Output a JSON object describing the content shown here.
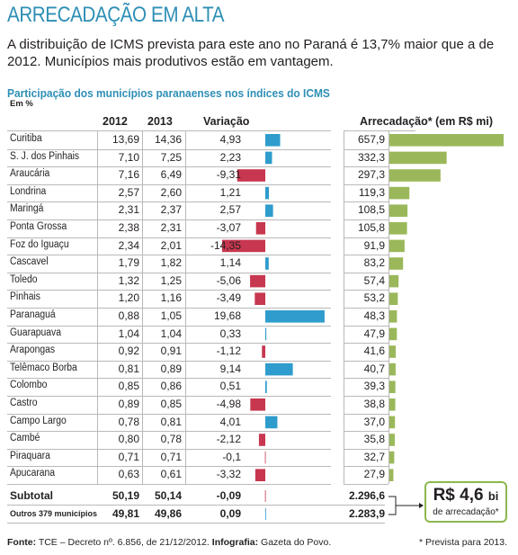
{
  "header": {
    "title": "ARRECADAÇÃO EM ALTA",
    "lead": "A distribuição de ICMS prevista para este ano no Paraná é 13,7% maior que a de 2012. Municípios mais produtivos estão em vantagem.",
    "subtitle": "Participação dos municípios paranaenses nos índices do ICMS",
    "unit": "Em %"
  },
  "columns": {
    "y2012": "2012",
    "y2013": "2013",
    "variation": "Variação",
    "revenue": "Arrecadação* (em R$ mi)"
  },
  "colors": {
    "positive": "#2e9ccc",
    "negative": "#c7374f",
    "revenue": "#9ab85a",
    "stripe": "#e9e9e9"
  },
  "chart_data": {
    "type": "table",
    "rows": [
      {
        "name": "Curitiba",
        "y2012": "13,69",
        "y2013": "14,36",
        "variation": 4.93,
        "variation_label": "4,93",
        "revenue": 657.9,
        "revenue_label": "657,9"
      },
      {
        "name": "S. J. dos Pinhais",
        "y2012": "7,10",
        "y2013": "7,25",
        "variation": 2.23,
        "variation_label": "2,23",
        "revenue": 332.3,
        "revenue_label": "332,3"
      },
      {
        "name": "Araucária",
        "y2012": "7,16",
        "y2013": "6,49",
        "variation": -9.31,
        "variation_label": "-9,31",
        "revenue": 297.3,
        "revenue_label": "297,3"
      },
      {
        "name": "Londrina",
        "y2012": "2,57",
        "y2013": "2,60",
        "variation": 1.21,
        "variation_label": "1,21",
        "revenue": 119.3,
        "revenue_label": "119,3"
      },
      {
        "name": "Maringá",
        "y2012": "2,31",
        "y2013": "2,37",
        "variation": 2.57,
        "variation_label": "2,57",
        "revenue": 108.5,
        "revenue_label": "108,5"
      },
      {
        "name": "Ponta Grossa",
        "y2012": "2,38",
        "y2013": "2,31",
        "variation": -3.07,
        "variation_label": "-3,07",
        "revenue": 105.8,
        "revenue_label": "105,8"
      },
      {
        "name": "Foz do Iguaçu",
        "y2012": "2,34",
        "y2013": "2,01",
        "variation": -14.35,
        "variation_label": "-14,35",
        "revenue": 91.9,
        "revenue_label": "91,9"
      },
      {
        "name": "Cascavel",
        "y2012": "1,79",
        "y2013": "1,82",
        "variation": 1.14,
        "variation_label": "1,14",
        "revenue": 83.2,
        "revenue_label": "83,2"
      },
      {
        "name": "Toledo",
        "y2012": "1,32",
        "y2013": "1,25",
        "variation": -5.06,
        "variation_label": "-5,06",
        "revenue": 57.4,
        "revenue_label": "57,4"
      },
      {
        "name": "Pinhais",
        "y2012": "1,20",
        "y2013": "1,16",
        "variation": -3.49,
        "variation_label": "-3,49",
        "revenue": 53.2,
        "revenue_label": "53,2"
      },
      {
        "name": "Paranaguá",
        "y2012": "0,88",
        "y2013": "1,05",
        "variation": 19.68,
        "variation_label": "19,68",
        "revenue": 48.3,
        "revenue_label": "48,3"
      },
      {
        "name": "Guarapuava",
        "y2012": "1,04",
        "y2013": "1,04",
        "variation": 0.33,
        "variation_label": "0,33",
        "revenue": 47.9,
        "revenue_label": "47,9"
      },
      {
        "name": "Arapongas",
        "y2012": "0,92",
        "y2013": "0,91",
        "variation": -1.12,
        "variation_label": "-1,12",
        "revenue": 41.6,
        "revenue_label": "41,6"
      },
      {
        "name": "Telêmaco Borba",
        "y2012": "0,81",
        "y2013": "0,89",
        "variation": 9.14,
        "variation_label": "9,14",
        "revenue": 40.7,
        "revenue_label": "40,7"
      },
      {
        "name": "Colombo",
        "y2012": "0,85",
        "y2013": "0,86",
        "variation": 0.51,
        "variation_label": "0,51",
        "revenue": 39.3,
        "revenue_label": "39,3"
      },
      {
        "name": "Castro",
        "y2012": "0,89",
        "y2013": "0,85",
        "variation": -4.98,
        "variation_label": "-4,98",
        "revenue": 38.8,
        "revenue_label": "38,8"
      },
      {
        "name": "Campo Largo",
        "y2012": "0,78",
        "y2013": "0,81",
        "variation": 4.01,
        "variation_label": "4,01",
        "revenue": 37.0,
        "revenue_label": "37,0"
      },
      {
        "name": "Cambé",
        "y2012": "0,80",
        "y2013": "0,78",
        "variation": -2.12,
        "variation_label": "-2,12",
        "revenue": 35.8,
        "revenue_label": "35,8"
      },
      {
        "name": "Piraquara",
        "y2012": "0,71",
        "y2013": "0,71",
        "variation": -0.1,
        "variation_label": "-0,1",
        "revenue": 32.7,
        "revenue_label": "32,7"
      },
      {
        "name": "Apucarana",
        "y2012": "0,63",
        "y2013": "0,61",
        "variation": -3.32,
        "variation_label": "-3,32",
        "revenue": 27.9,
        "revenue_label": "27,9"
      }
    ],
    "totals": [
      {
        "name": "Subtotal",
        "y2012": "50,19",
        "y2013": "50,14",
        "variation": -0.09,
        "variation_label": "-0,09",
        "revenue_label": "2.296,6"
      },
      {
        "name": "Outros 379 municípios",
        "y2012": "49,81",
        "y2013": "49,86",
        "variation": 0.09,
        "variation_label": "0,09",
        "revenue_label": "2.283,9"
      }
    ],
    "variation_range": [
      -15,
      20
    ],
    "revenue_range": [
      0,
      660
    ]
  },
  "callout": {
    "value": "R$ 4,6",
    "unit": "bi",
    "label": "de arrecadação*"
  },
  "footer": {
    "source_label": "Fonte:",
    "source_text": "TCE – Decreto nº. 6.856, de 21/12/2012.",
    "infographic_label": "Infografia:",
    "infographic_text": "Gazeta do Povo.",
    "footnote": "* Prevista para 2013."
  }
}
